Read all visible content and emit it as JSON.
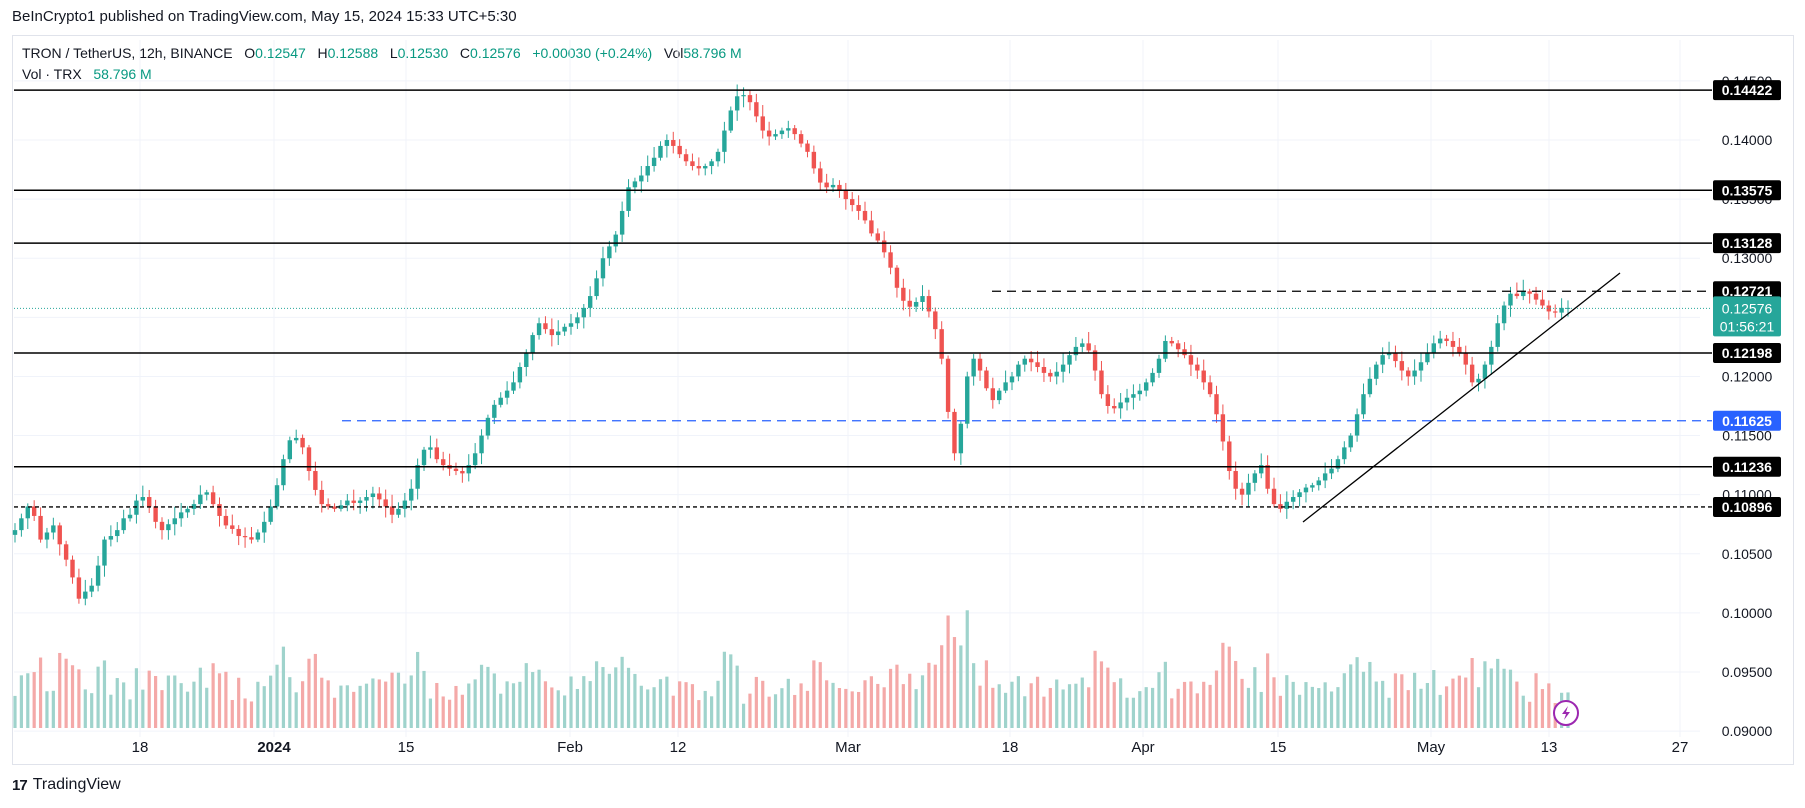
{
  "header": {
    "published": "BeInCrypto1 published on TradingView.com, May 15, 2024 15:33 UTC+5:30"
  },
  "legend": {
    "symbol": "TRON / TetherUS, 12h, BINANCE",
    "o_label": "O",
    "o_value": "0.12547",
    "h_label": "H",
    "h_value": "0.12588",
    "l_label": "L",
    "l_value": "0.12530",
    "c_label": "C",
    "c_value": "0.12576",
    "change": "+0.00030 (+0.24%)",
    "vol_label": "Vol",
    "vol_value": "58.796 M",
    "vol_row_label": "Vol · TRX",
    "vol_row_value": "58.796 M"
  },
  "footer": {
    "brand": "TradingView",
    "logo_glyph": "17"
  },
  "colors": {
    "up": "#26a69a",
    "down": "#ef5350",
    "vol_up": "#9fd3cc",
    "vol_down": "#f4a9a8",
    "blue": "#2962ff",
    "black": "#000000"
  },
  "chart_data": {
    "type": "candlestick",
    "ylim": [
      0.0895,
      0.1455
    ],
    "price_ticks": [
      "0.14500",
      "0.14000",
      "0.13500",
      "0.13000",
      "0.12500",
      "0.12000",
      "0.11500",
      "0.11000",
      "0.10500",
      "0.10000",
      "0.09500",
      "0.09000"
    ],
    "x_ticks": [
      "18",
      "2024",
      "15",
      "Feb",
      "12",
      "Mar",
      "18",
      "Apr",
      "15",
      "May",
      "13",
      "27"
    ],
    "levels": [
      {
        "label": "0.14422",
        "value": 0.14422,
        "style": "solid",
        "color": "#000000"
      },
      {
        "label": "0.13575",
        "value": 0.13575,
        "style": "solid",
        "color": "#000000"
      },
      {
        "label": "0.13128",
        "value": 0.13128,
        "style": "solid",
        "color": "#000000"
      },
      {
        "label": "0.12721",
        "value": 0.12721,
        "style": "dashed",
        "color": "#000000"
      },
      {
        "label": "0.12198",
        "value": 0.12198,
        "style": "solid",
        "color": "#000000"
      },
      {
        "label": "0.11625",
        "value": 0.11625,
        "style": "dashed",
        "color": "#2962ff"
      },
      {
        "label": "0.11236",
        "value": 0.11236,
        "style": "solid",
        "color": "#000000"
      },
      {
        "label": "0.10896",
        "value": 0.10896,
        "style": "dashed",
        "color": "#000000"
      }
    ],
    "current": {
      "label": "0.12576",
      "value": 0.12576,
      "countdown": "01:56:21"
    },
    "close_path": [
      0.107,
      0.108,
      0.109,
      0.1082,
      0.1062,
      0.1068,
      0.1074,
      0.1058,
      0.1045,
      0.103,
      0.1012,
      0.1018,
      0.1023,
      0.104,
      0.1062,
      0.1065,
      0.107,
      0.108,
      0.1083,
      0.1095,
      0.1098,
      0.109,
      0.1077,
      0.107,
      0.1075,
      0.108,
      0.1085,
      0.1088,
      0.1092,
      0.11,
      0.1102,
      0.1092,
      0.1082,
      0.1074,
      0.1071,
      0.1065,
      0.1064,
      0.1062,
      0.1068,
      0.1077,
      0.109,
      0.1108,
      0.113,
      0.1146,
      0.1148,
      0.114,
      0.112,
      0.1104,
      0.1092,
      0.109,
      0.1088,
      0.1091,
      0.1095,
      0.1093,
      0.1095,
      0.1098,
      0.1101,
      0.1096,
      0.109,
      0.1083,
      0.1088,
      0.1095,
      0.1105,
      0.1125,
      0.1138,
      0.114,
      0.113,
      0.1125,
      0.1122,
      0.112,
      0.1118,
      0.1125,
      0.1135,
      0.115,
      0.1165,
      0.1176,
      0.1182,
      0.1188,
      0.1195,
      0.1208,
      0.122,
      0.1235,
      0.1245,
      0.124,
      0.1235,
      0.1238,
      0.1242,
      0.1245,
      0.125,
      0.1258,
      0.1268,
      0.1283,
      0.13,
      0.131,
      0.132,
      0.134,
      0.136,
      0.1365,
      0.137,
      0.1378,
      0.1385,
      0.1395,
      0.14,
      0.1395,
      0.1388,
      0.1382,
      0.1378,
      0.1376,
      0.1378,
      0.1382,
      0.139,
      0.1408,
      0.1425,
      0.1437,
      0.1438,
      0.1432,
      0.142,
      0.1408,
      0.1403,
      0.1405,
      0.1408,
      0.141,
      0.1405,
      0.1397,
      0.139,
      0.1376,
      0.1364,
      0.136,
      0.1362,
      0.1358,
      0.135,
      0.1345,
      0.134,
      0.1332,
      0.1321,
      0.1315,
      0.1305,
      0.1292,
      0.1275,
      0.1264,
      0.1259,
      0.1263,
      0.1268,
      0.1255,
      0.124,
      0.1215,
      0.117,
      0.1135,
      0.116,
      0.12,
      0.1215,
      0.1205,
      0.119,
      0.118,
      0.1188,
      0.1195,
      0.12,
      0.121,
      0.1215,
      0.1212,
      0.1208,
      0.1203,
      0.12,
      0.1204,
      0.121,
      0.1218,
      0.1225,
      0.1228,
      0.1222,
      0.1205,
      0.1185,
      0.1175,
      0.1173,
      0.1178,
      0.1182,
      0.1185,
      0.1188,
      0.1195,
      0.1203,
      0.1215,
      0.123,
      0.1228,
      0.1223,
      0.1218,
      0.121,
      0.1205,
      0.1195,
      0.1185,
      0.1168,
      0.1145,
      0.112,
      0.1105,
      0.11,
      0.111,
      0.1118,
      0.1125,
      0.1105,
      0.1092,
      0.1088,
      0.1094,
      0.1098,
      0.1102,
      0.1106,
      0.1108,
      0.1112,
      0.1118,
      0.1122,
      0.113,
      0.114,
      0.115,
      0.1168,
      0.1185,
      0.1198,
      0.121,
      0.1218,
      0.122,
      0.1213,
      0.1205,
      0.12,
      0.1205,
      0.1212,
      0.122,
      0.1228,
      0.1232,
      0.123,
      0.1225,
      0.122,
      0.121,
      0.1195,
      0.1198,
      0.121,
      0.1225,
      0.1245,
      0.126,
      0.127,
      0.1268,
      0.1272,
      0.127,
      0.1265,
      0.126,
      0.1255,
      0.1254,
      0.1258,
      0.1258
    ]
  }
}
